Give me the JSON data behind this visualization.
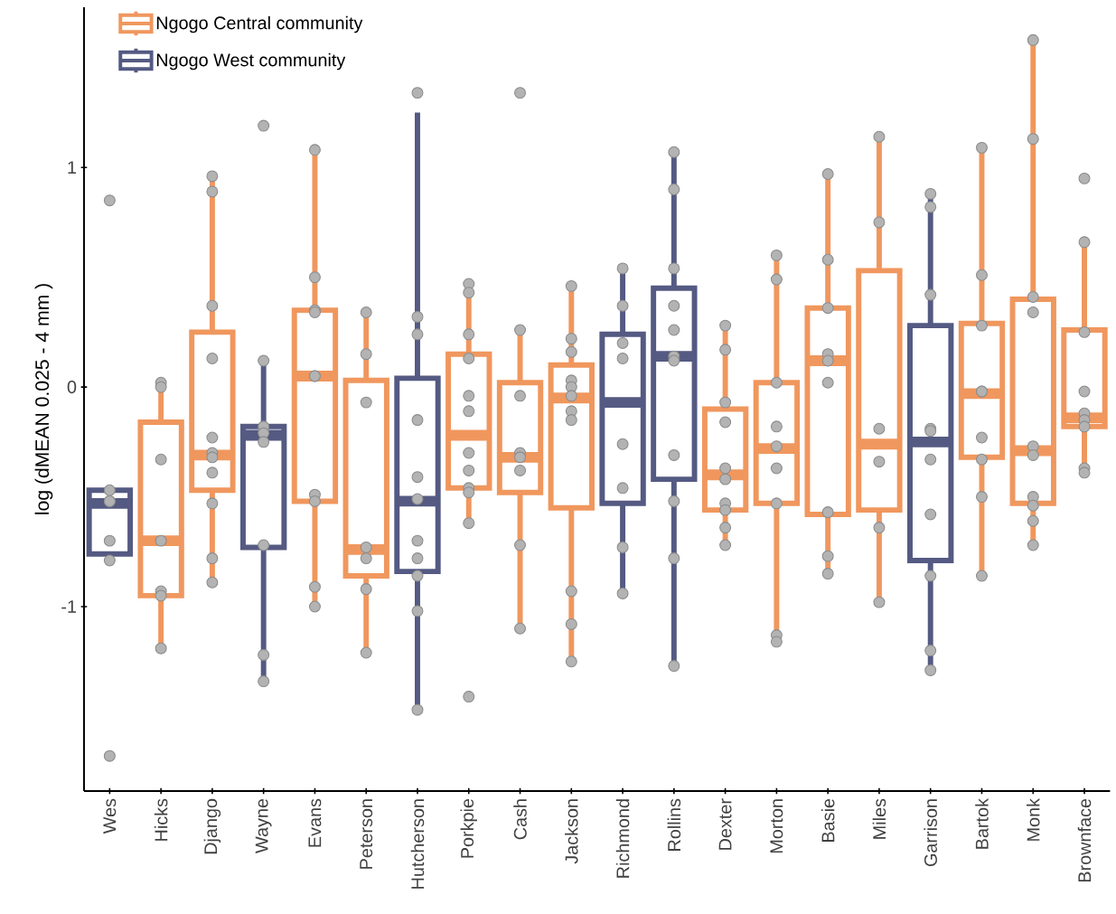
{
  "chart_data": {
    "type": "box",
    "ylabel": "log (dMEAN 0.025 - 4 mm )",
    "categories": [
      "Wes",
      "Hicks",
      "Django",
      "Wayne",
      "Evans",
      "Peterson",
      "Hutcherson",
      "Porkpie",
      "Cash",
      "Jackson",
      "Richmond",
      "Rollins",
      "Dexter",
      "Morton",
      "Basie",
      "Miles",
      "Garrison",
      "Bartok",
      "Monk",
      "Brownface"
    ],
    "ylim": [
      -1.84,
      1.73
    ],
    "yticks": [
      -1,
      0,
      1
    ],
    "grid": false,
    "legend": "top left",
    "series": [
      {
        "name": "Ngogo Central community",
        "color": "#f0975e",
        "boxes": [
          null,
          {
            "low": -1.2,
            "q1": -0.95,
            "median": -0.7,
            "q3": -0.16,
            "high": 0.0
          },
          {
            "low": -0.9,
            "q1": -0.47,
            "median": -0.31,
            "q3": 0.25,
            "high": 0.96
          },
          null,
          {
            "low": -1.0,
            "q1": -0.52,
            "median": 0.05,
            "q3": 0.35,
            "high": 1.08
          },
          {
            "low": -1.22,
            "q1": -0.86,
            "median": -0.74,
            "q3": 0.03,
            "high": 0.33
          },
          null,
          {
            "low": -0.63,
            "q1": -0.46,
            "median": -0.22,
            "q3": 0.15,
            "high": 0.45
          },
          {
            "low": -1.12,
            "q1": -0.48,
            "median": -0.32,
            "q3": 0.02,
            "high": 0.25
          },
          {
            "low": -1.26,
            "q1": -0.55,
            "median": -0.05,
            "q3": 0.1,
            "high": 0.45
          },
          null,
          null,
          {
            "low": -0.73,
            "q1": -0.56,
            "median": -0.4,
            "q3": -0.1,
            "high": 0.27
          },
          {
            "low": -1.16,
            "q1": -0.53,
            "median": -0.28,
            "q3": 0.02,
            "high": 0.58
          },
          {
            "low": -0.86,
            "q1": -0.58,
            "median": 0.12,
            "q3": 0.36,
            "high": 0.97
          },
          {
            "low": -0.97,
            "q1": -0.56,
            "median": -0.26,
            "q3": 0.53,
            "high": 1.14
          },
          null,
          {
            "low": -0.84,
            "q1": -0.32,
            "median": -0.03,
            "q3": 0.29,
            "high": 1.09
          },
          {
            "low": -0.72,
            "q1": -0.53,
            "median": -0.29,
            "q3": 0.4,
            "high": 1.56
          },
          {
            "low": -0.37,
            "q1": -0.18,
            "median": -0.14,
            "q3": 0.26,
            "high": 0.66
          }
        ]
      },
      {
        "name": "Ngogo West community",
        "color": "#545a82",
        "boxes": [
          {
            "low": -0.8,
            "q1": -0.76,
            "median": -0.53,
            "q3": -0.47,
            "high": -0.47
          },
          null,
          null,
          {
            "low": -1.35,
            "q1": -0.73,
            "median": -0.22,
            "q3": -0.18,
            "high": 0.11
          },
          null,
          null,
          {
            "low": -1.47,
            "q1": -0.84,
            "median": -0.52,
            "q3": 0.04,
            "high": 1.25
          },
          null,
          null,
          null,
          {
            "low": -0.95,
            "q1": -0.53,
            "median": -0.07,
            "q3": 0.24,
            "high": 0.53
          },
          {
            "low": -1.28,
            "q1": -0.42,
            "median": 0.14,
            "q3": 0.45,
            "high": 1.07
          },
          null,
          null,
          null,
          null,
          {
            "low": -1.27,
            "q1": -0.79,
            "median": -0.25,
            "q3": 0.28,
            "high": 0.88
          },
          null,
          null,
          null
        ]
      },
      {
        "type": "scatter",
        "color": "#b3b3b3",
        "marker": "circle",
        "x": [
          "Wes",
          "Wes",
          "Wes",
          "Wes",
          "Wes",
          "Wes",
          "Wes",
          "Hicks",
          "Hicks",
          "Hicks",
          "Hicks",
          "Hicks",
          "Hicks",
          "Hicks",
          "Django",
          "Django",
          "Django",
          "Django",
          "Django",
          "Django",
          "Django",
          "Django",
          "Django",
          "Django",
          "Django",
          "Wayne",
          "Wayne",
          "Wayne",
          "Wayne",
          "Wayne",
          "Wayne",
          "Wayne",
          "Wayne",
          "Evans",
          "Evans",
          "Evans",
          "Evans",
          "Evans",
          "Evans",
          "Evans",
          "Evans",
          "Evans",
          "Evans",
          "Peterson",
          "Peterson",
          "Peterson",
          "Peterson",
          "Peterson",
          "Peterson",
          "Peterson",
          "Hutcherson",
          "Hutcherson",
          "Hutcherson",
          "Hutcherson",
          "Hutcherson",
          "Hutcherson",
          "Hutcherson",
          "Hutcherson",
          "Hutcherson",
          "Hutcherson",
          "Hutcherson",
          "Porkpie",
          "Porkpie",
          "Porkpie",
          "Porkpie",
          "Porkpie",
          "Porkpie",
          "Porkpie",
          "Porkpie",
          "Porkpie",
          "Porkpie",
          "Porkpie",
          "Porkpie",
          "Cash",
          "Cash",
          "Cash",
          "Cash",
          "Cash",
          "Cash",
          "Cash",
          "Cash",
          "Jackson",
          "Jackson",
          "Jackson",
          "Jackson",
          "Jackson",
          "Jackson",
          "Jackson",
          "Jackson",
          "Jackson",
          "Jackson",
          "Jackson",
          "Richmond",
          "Richmond",
          "Richmond",
          "Richmond",
          "Richmond",
          "Richmond",
          "Richmond",
          "Richmond",
          "Rollins",
          "Rollins",
          "Rollins",
          "Rollins",
          "Rollins",
          "Rollins",
          "Rollins",
          "Rollins",
          "Rollins",
          "Rollins",
          "Rollins",
          "Dexter",
          "Dexter",
          "Dexter",
          "Dexter",
          "Dexter",
          "Dexter",
          "Dexter",
          "Dexter",
          "Dexter",
          "Dexter",
          "Morton",
          "Morton",
          "Morton",
          "Morton",
          "Morton",
          "Morton",
          "Morton",
          "Morton",
          "Morton",
          "Basie",
          "Basie",
          "Basie",
          "Basie",
          "Basie",
          "Basie",
          "Basie",
          "Basie",
          "Basie",
          "Miles",
          "Miles",
          "Miles",
          "Miles",
          "Miles",
          "Miles",
          "Garrison",
          "Garrison",
          "Garrison",
          "Garrison",
          "Garrison",
          "Garrison",
          "Garrison",
          "Garrison",
          "Garrison",
          "Garrison",
          "Bartok",
          "Bartok",
          "Bartok",
          "Bartok",
          "Bartok",
          "Bartok",
          "Bartok",
          "Bartok",
          "Bartok",
          "Monk",
          "Monk",
          "Monk",
          "Monk",
          "Monk",
          "Monk",
          "Monk",
          "Monk",
          "Monk",
          "Monk",
          "Brownface",
          "Brownface",
          "Brownface",
          "Brownface",
          "Brownface",
          "Brownface",
          "Brownface",
          "Brownface",
          "Brownface"
        ],
        "values": [
          0.85,
          -0.47,
          -0.52,
          -0.52,
          -0.7,
          -0.79,
          -1.68,
          0.02,
          0.0,
          -0.33,
          -0.7,
          -0.93,
          -0.95,
          -1.19,
          0.96,
          0.89,
          0.37,
          0.13,
          -0.23,
          -0.3,
          -0.32,
          -0.39,
          -0.53,
          -0.78,
          -0.89,
          1.19,
          0.12,
          -0.18,
          -0.21,
          -0.25,
          -0.72,
          -1.22,
          -1.34,
          1.08,
          0.5,
          0.35,
          0.34,
          0.05,
          0.05,
          -0.49,
          -0.52,
          -0.91,
          -1.0,
          0.34,
          0.15,
          -0.07,
          -0.73,
          -0.78,
          -0.92,
          -1.21,
          1.34,
          0.32,
          0.24,
          -0.15,
          -0.41,
          -0.51,
          -0.7,
          -0.78,
          -0.86,
          -1.02,
          -1.47,
          0.47,
          0.43,
          0.24,
          0.13,
          -0.04,
          -0.11,
          -0.3,
          -0.38,
          -0.46,
          -0.48,
          -0.62,
          -1.41,
          1.34,
          0.26,
          -0.04,
          -0.3,
          -0.32,
          -0.38,
          -0.72,
          -1.1,
          0.46,
          0.22,
          0.16,
          0.03,
          0.0,
          -0.04,
          -0.11,
          -0.15,
          -0.93,
          -1.08,
          -1.25,
          0.54,
          0.37,
          0.2,
          0.13,
          -0.26,
          -0.46,
          -0.73,
          -0.94,
          1.07,
          0.9,
          0.54,
          0.37,
          0.26,
          0.14,
          0.12,
          -0.31,
          -0.52,
          -0.78,
          -1.27,
          0.28,
          0.17,
          -0.07,
          -0.16,
          -0.37,
          -0.42,
          -0.53,
          -0.56,
          -0.64,
          -0.72,
          0.6,
          0.49,
          0.02,
          -0.18,
          -0.27,
          -0.37,
          -0.53,
          -1.13,
          -1.16,
          0.97,
          0.58,
          0.36,
          0.15,
          0.12,
          0.02,
          -0.57,
          -0.77,
          -0.85,
          1.14,
          0.75,
          -0.19,
          -0.34,
          -0.64,
          -0.98,
          0.88,
          0.82,
          0.42,
          -0.19,
          -0.2,
          -0.33,
          -0.58,
          -0.86,
          -1.2,
          -1.29,
          1.09,
          0.51,
          0.28,
          -0.02,
          -0.02,
          -0.23,
          -0.33,
          -0.5,
          -0.86,
          1.58,
          1.13,
          0.41,
          0.34,
          -0.27,
          -0.31,
          -0.5,
          -0.54,
          -0.61,
          -0.72,
          0.95,
          0.66,
          0.25,
          -0.02,
          -0.12,
          -0.15,
          -0.18,
          -0.37,
          -0.39
        ]
      }
    ]
  }
}
